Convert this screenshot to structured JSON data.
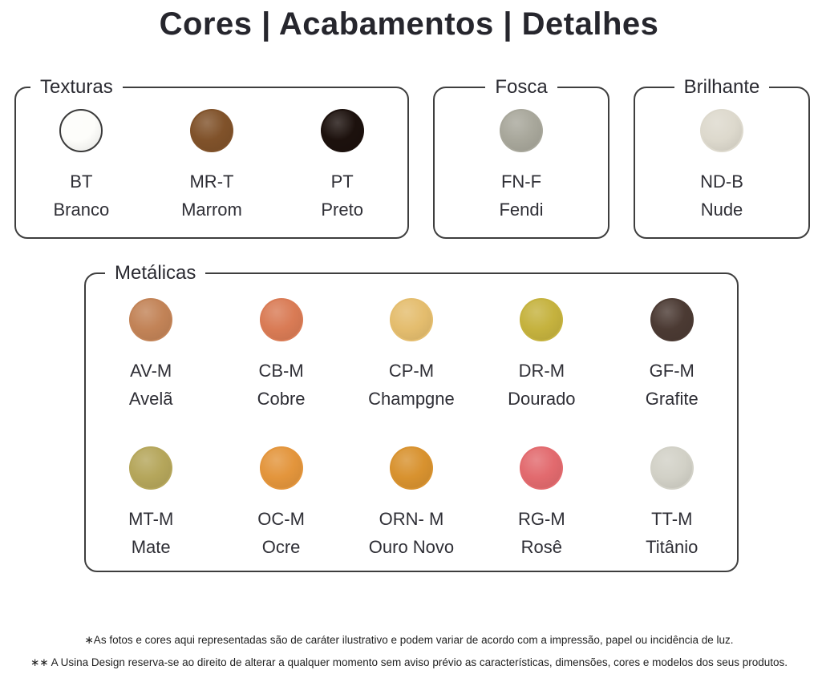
{
  "page": {
    "title": "Cores | Acabamentos | Detalhes"
  },
  "groups": [
    {
      "label": "Texturas",
      "swatches": [
        {
          "code": "BT",
          "name": "Branco",
          "color": "#fdfdfa",
          "ring": "#3a3a3a"
        },
        {
          "code": "MR-T",
          "name": "Marrom",
          "color": "#80522a"
        },
        {
          "code": "PT",
          "name": "Preto",
          "color": "#1c110d"
        }
      ]
    },
    {
      "label": "Fosca",
      "swatches": [
        {
          "code": "FN-F",
          "name": "Fendi",
          "color": "#a8a79b"
        }
      ]
    },
    {
      "label": "Brilhante",
      "swatches": [
        {
          "code": "ND-B",
          "name": "Nude",
          "color": "#ddd9cd"
        }
      ]
    },
    {
      "label": "Metálicas",
      "swatches": [
        {
          "code": "AV-M",
          "name": "Avelã",
          "color": "#c28357"
        },
        {
          "code": "CB-M",
          "name": "Cobre",
          "color": "#d97b55"
        },
        {
          "code": "CP-M",
          "name": "Champgne",
          "color": "#e4bd6e"
        },
        {
          "code": "DR-M",
          "name": "Dourado",
          "color": "#c5b23e"
        },
        {
          "code": "GF-M",
          "name": "Grafite",
          "color": "#4b3a33"
        },
        {
          "code": "MT-M",
          "name": "Mate",
          "color": "#b5a65b"
        },
        {
          "code": "OC-M",
          "name": "Ocre",
          "color": "#e3953c"
        },
        {
          "code": "ORN- M",
          "name": "Ouro Novo",
          "color": "#d8922f"
        },
        {
          "code": "RG-M",
          "name": "Rosê",
          "color": "#e26a6e"
        },
        {
          "code": "TT-M",
          "name": "Titânio",
          "color": "#d2d1c7"
        }
      ]
    }
  ],
  "footnotes": [
    "∗As fotos e cores aqui representadas são de caráter ilustrativo e podem variar de acordo com a impressão, papel ou incidência de luz.",
    "∗∗ A Usina Design reserva-se ao direito de alterar a qualquer momento sem aviso prévio as características, dimensões, cores e modelos dos seus produtos."
  ]
}
